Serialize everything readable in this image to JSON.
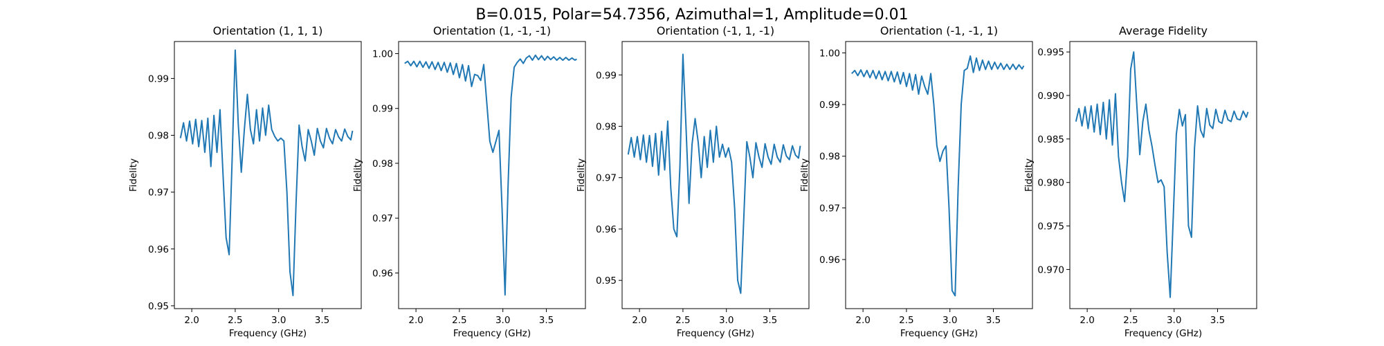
{
  "figure": {
    "suptitle": "B=0.015, Polar=54.7356, Azimuthal=1, Amplitude=0.01",
    "line_color": "#1f77b4"
  },
  "chart_data": [
    {
      "type": "line",
      "title": "Orientation (1, 1, 1)",
      "xlabel": "Frequency (GHz)",
      "ylabel": "Fidelity",
      "xlim": [
        1.8,
        3.95
      ],
      "ylim": [
        0.9495,
        0.9965
      ],
      "xticks": [
        2.0,
        2.5,
        3.0,
        3.5
      ],
      "yticks": [
        0.95,
        0.96,
        0.97,
        0.98,
        0.99
      ],
      "series": [
        {
          "x": [
            1.87,
            1.905,
            1.94,
            1.975,
            2.01,
            2.045,
            2.08,
            2.115,
            2.15,
            2.185,
            2.22,
            2.255,
            2.29,
            2.325,
            2.36,
            2.395,
            2.43,
            2.465,
            2.5,
            2.535,
            2.57,
            2.605,
            2.64,
            2.675,
            2.71,
            2.745,
            2.78,
            2.815,
            2.85,
            2.885,
            2.92,
            2.955,
            2.99,
            3.025,
            3.06,
            3.095,
            3.13,
            3.165,
            3.2,
            3.235,
            3.27,
            3.305,
            3.34,
            3.375,
            3.41,
            3.445,
            3.48,
            3.515,
            3.55,
            3.585,
            3.62,
            3.655,
            3.69,
            3.725,
            3.76,
            3.795,
            3.83,
            3.85
          ],
          "y": [
            0.9795,
            0.9822,
            0.979,
            0.9825,
            0.9785,
            0.9828,
            0.978,
            0.9826,
            0.977,
            0.983,
            0.9745,
            0.9835,
            0.977,
            0.9845,
            0.973,
            0.962,
            0.959,
            0.976,
            0.995,
            0.982,
            0.9735,
            0.981,
            0.9872,
            0.981,
            0.9785,
            0.9845,
            0.979,
            0.9848,
            0.98,
            0.9853,
            0.981,
            0.9798,
            0.979,
            0.9795,
            0.979,
            0.97,
            0.956,
            0.9518,
            0.968,
            0.9818,
            0.978,
            0.9755,
            0.981,
            0.979,
            0.9765,
            0.9812,
            0.979,
            0.9778,
            0.9812,
            0.9795,
            0.9785,
            0.981,
            0.9797,
            0.979,
            0.9811,
            0.9798,
            0.9792,
            0.9808
          ]
        }
      ]
    },
    {
      "type": "line",
      "title": "Orientation (1, -1, -1)",
      "xlabel": "Frequency (GHz)",
      "ylabel": "Fidelity",
      "xlim": [
        1.8,
        3.95
      ],
      "ylim": [
        0.9535,
        1.0022
      ],
      "xticks": [
        2.0,
        2.5,
        3.0,
        3.5
      ],
      "yticks": [
        0.96,
        0.97,
        0.98,
        0.99,
        1.0
      ],
      "series": [
        {
          "x": [
            1.87,
            1.905,
            1.94,
            1.975,
            2.01,
            2.045,
            2.08,
            2.115,
            2.15,
            2.185,
            2.22,
            2.255,
            2.29,
            2.325,
            2.36,
            2.395,
            2.43,
            2.465,
            2.5,
            2.535,
            2.57,
            2.605,
            2.64,
            2.675,
            2.71,
            2.745,
            2.78,
            2.815,
            2.85,
            2.885,
            2.92,
            2.955,
            2.99,
            3.025,
            3.06,
            3.095,
            3.13,
            3.165,
            3.2,
            3.235,
            3.27,
            3.305,
            3.34,
            3.375,
            3.41,
            3.445,
            3.48,
            3.515,
            3.55,
            3.585,
            3.62,
            3.655,
            3.69,
            3.725,
            3.76,
            3.795,
            3.83,
            3.85
          ],
          "y": [
            0.9982,
            0.9986,
            0.9978,
            0.9986,
            0.9976,
            0.9986,
            0.9975,
            0.9985,
            0.9973,
            0.9985,
            0.9971,
            0.9984,
            0.9969,
            0.9984,
            0.9966,
            0.9983,
            0.9962,
            0.9982,
            0.9956,
            0.998,
            0.995,
            0.9978,
            0.994,
            0.9962,
            0.996,
            0.9951,
            0.998,
            0.991,
            0.984,
            0.982,
            0.984,
            0.986,
            0.972,
            0.956,
            0.976,
            0.992,
            0.9975,
            0.9984,
            0.999,
            0.9982,
            0.9992,
            0.9996,
            0.9988,
            0.9997,
            0.9989,
            0.9996,
            0.9988,
            0.9995,
            0.9989,
            0.9994,
            0.9988,
            0.9993,
            0.9988,
            0.9993,
            0.9988,
            0.9992,
            0.9988,
            0.999
          ]
        }
      ]
    },
    {
      "type": "line",
      "title": "Orientation (-1, 1, -1)",
      "xlabel": "Frequency (GHz)",
      "ylabel": "Fidelity",
      "xlim": [
        1.8,
        3.95
      ],
      "ylim": [
        0.9445,
        0.9965
      ],
      "xticks": [
        2.0,
        2.5,
        3.0,
        3.5
      ],
      "yticks": [
        0.95,
        0.96,
        0.97,
        0.98,
        0.99
      ],
      "series": [
        {
          "x": [
            1.87,
            1.905,
            1.94,
            1.975,
            2.01,
            2.045,
            2.08,
            2.115,
            2.15,
            2.185,
            2.22,
            2.255,
            2.29,
            2.325,
            2.36,
            2.395,
            2.43,
            2.465,
            2.5,
            2.535,
            2.57,
            2.605,
            2.64,
            2.675,
            2.71,
            2.745,
            2.78,
            2.815,
            2.85,
            2.885,
            2.92,
            2.955,
            2.99,
            3.025,
            3.06,
            3.095,
            3.13,
            3.165,
            3.2,
            3.235,
            3.27,
            3.305,
            3.34,
            3.375,
            3.41,
            3.445,
            3.48,
            3.515,
            3.55,
            3.585,
            3.62,
            3.655,
            3.69,
            3.725,
            3.76,
            3.795,
            3.83,
            3.85
          ],
          "y": [
            0.9745,
            0.9778,
            0.974,
            0.978,
            0.9735,
            0.9783,
            0.973,
            0.9782,
            0.9722,
            0.9786,
            0.9705,
            0.979,
            0.9715,
            0.981,
            0.968,
            0.96,
            0.9585,
            0.972,
            0.994,
            0.98,
            0.965,
            0.9765,
            0.9815,
            0.977,
            0.97,
            0.978,
            0.972,
            0.9792,
            0.973,
            0.98,
            0.974,
            0.9765,
            0.974,
            0.9758,
            0.973,
            0.964,
            0.95,
            0.9475,
            0.962,
            0.977,
            0.974,
            0.97,
            0.9768,
            0.974,
            0.972,
            0.9766,
            0.974,
            0.9726,
            0.9765,
            0.974,
            0.973,
            0.9764,
            0.9742,
            0.9735,
            0.9762,
            0.9744,
            0.9738,
            0.9762
          ]
        }
      ]
    },
    {
      "type": "line",
      "title": "Orientation (-1, -1, 1)",
      "xlabel": "Frequency (GHz)",
      "ylabel": "Fidelity",
      "xlim": [
        1.8,
        3.95
      ],
      "ylim": [
        0.9505,
        1.0022
      ],
      "xticks": [
        2.0,
        2.5,
        3.0,
        3.5
      ],
      "yticks": [
        0.96,
        0.97,
        0.98,
        0.99,
        1.0
      ],
      "series": [
        {
          "x": [
            1.87,
            1.905,
            1.94,
            1.975,
            2.01,
            2.045,
            2.08,
            2.115,
            2.15,
            2.185,
            2.22,
            2.255,
            2.29,
            2.325,
            2.36,
            2.395,
            2.43,
            2.465,
            2.5,
            2.535,
            2.57,
            2.605,
            2.64,
            2.675,
            2.71,
            2.745,
            2.78,
            2.815,
            2.85,
            2.885,
            2.92,
            2.955,
            2.99,
            3.025,
            3.06,
            3.095,
            3.13,
            3.165,
            3.2,
            3.235,
            3.27,
            3.305,
            3.34,
            3.375,
            3.41,
            3.445,
            3.48,
            3.515,
            3.55,
            3.585,
            3.62,
            3.655,
            3.69,
            3.725,
            3.76,
            3.795,
            3.83,
            3.85
          ],
          "y": [
            0.996,
            0.9966,
            0.9956,
            0.9967,
            0.9954,
            0.9966,
            0.9952,
            0.9966,
            0.995,
            0.9965,
            0.9948,
            0.9964,
            0.9946,
            0.9964,
            0.9944,
            0.9963,
            0.994,
            0.9962,
            0.9935,
            0.996,
            0.9928,
            0.9958,
            0.992,
            0.9955,
            0.9935,
            0.992,
            0.996,
            0.99,
            0.982,
            0.979,
            0.981,
            0.982,
            0.97,
            0.954,
            0.953,
            0.974,
            0.99,
            0.9966,
            0.997,
            0.9994,
            0.9962,
            0.999,
            0.9966,
            0.9986,
            0.9968,
            0.9984,
            0.9968,
            0.9982,
            0.9969,
            0.998,
            0.9968,
            0.9978,
            0.9968,
            0.9978,
            0.9968,
            0.9977,
            0.9969,
            0.9975
          ]
        }
      ]
    },
    {
      "type": "line",
      "title": "Average Fidelity",
      "xlabel": "Frequency (GHz)",
      "ylabel": "Fidelity",
      "xlim": [
        1.8,
        3.95
      ],
      "ylim": [
        0.9655,
        0.9962
      ],
      "xticks": [
        2.0,
        2.5,
        3.0,
        3.5
      ],
      "yticks": [
        0.97,
        0.975,
        0.98,
        0.985,
        0.99,
        0.995
      ],
      "series": [
        {
          "x": [
            1.87,
            1.905,
            1.94,
            1.975,
            2.01,
            2.045,
            2.08,
            2.115,
            2.15,
            2.185,
            2.22,
            2.255,
            2.29,
            2.325,
            2.36,
            2.395,
            2.43,
            2.465,
            2.5,
            2.535,
            2.57,
            2.605,
            2.64,
            2.675,
            2.71,
            2.745,
            2.78,
            2.815,
            2.85,
            2.885,
            2.92,
            2.955,
            2.99,
            3.025,
            3.06,
            3.095,
            3.13,
            3.165,
            3.2,
            3.235,
            3.27,
            3.305,
            3.34,
            3.375,
            3.41,
            3.445,
            3.48,
            3.515,
            3.55,
            3.585,
            3.62,
            3.655,
            3.69,
            3.725,
            3.76,
            3.795,
            3.83,
            3.85
          ],
          "y": [
            0.987,
            0.9885,
            0.9865,
            0.9887,
            0.9862,
            0.9888,
            0.9858,
            0.989,
            0.9855,
            0.9892,
            0.985,
            0.9895,
            0.9843,
            0.9902,
            0.983,
            0.98,
            0.9778,
            0.983,
            0.993,
            0.995,
            0.989,
            0.9832,
            0.987,
            0.989,
            0.986,
            0.9842,
            0.982,
            0.98,
            0.9803,
            0.9795,
            0.972,
            0.9668,
            0.976,
            0.9855,
            0.9884,
            0.9865,
            0.9878,
            0.975,
            0.9737,
            0.984,
            0.9888,
            0.986,
            0.9852,
            0.9885,
            0.9866,
            0.9862,
            0.9884,
            0.987,
            0.9868,
            0.9883,
            0.9872,
            0.987,
            0.9882,
            0.9873,
            0.9872,
            0.9882,
            0.9875,
            0.9881
          ]
        }
      ]
    }
  ]
}
